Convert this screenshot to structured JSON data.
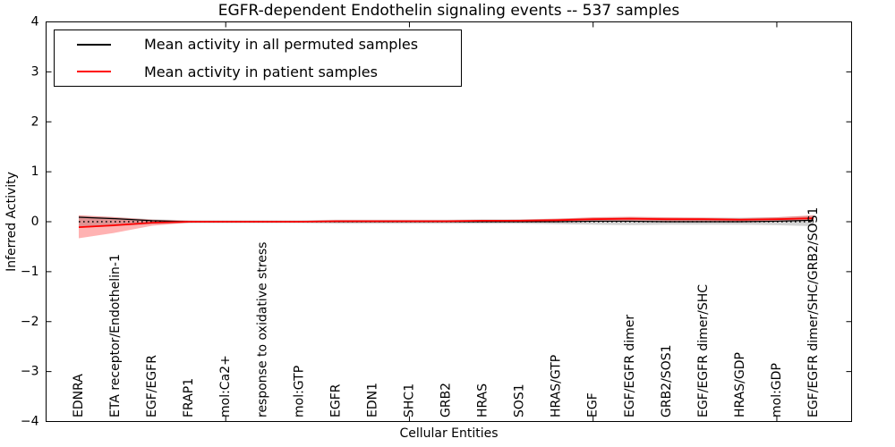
{
  "figure": {
    "title": "EGFR-dependent Endothelin signaling events -- 537 samples",
    "xlabel": "Cellular Entities",
    "ylabel": "Inferred Activity"
  },
  "legend": {
    "position": "upper left",
    "entries": [
      {
        "label": "Mean activity in all permuted samples",
        "color": "#000000"
      },
      {
        "label": "Mean activity in patient samples",
        "color": "#ff0000"
      }
    ]
  },
  "chart_data": {
    "type": "line",
    "title": "EGFR-dependent Endothelin signaling events -- 537 samples",
    "xlabel": "Cellular Entities",
    "ylabel": "Inferred Activity",
    "ylim": [
      -4,
      4
    ],
    "grid": false,
    "legend_position": "upper left",
    "yticks": [
      {
        "value": 4,
        "label": "4"
      },
      {
        "value": 3,
        "label": "3"
      },
      {
        "value": 2,
        "label": "2"
      },
      {
        "value": 1,
        "label": "1"
      },
      {
        "value": 0,
        "label": "0"
      },
      {
        "value": -1,
        "label": "−1"
      },
      {
        "value": -2,
        "label": "−2"
      },
      {
        "value": -3,
        "label": "−3"
      },
      {
        "value": -4,
        "label": "−4"
      }
    ],
    "xtick_marks_at": [
      4,
      9,
      14,
      19
    ],
    "categories": [
      "EDNRA",
      "ETA receptor/Endothelin-1",
      "EGF/EGFR",
      "FRAP1",
      "mol:Ca2+",
      "response to oxidative stress",
      "mol:GTP",
      "EGFR",
      "EDN1",
      "SHC1",
      "GRB2",
      "HRAS",
      "SOS1",
      "HRAS/GTP",
      "EGF",
      "EGF/EGFR dimer",
      "GRB2/SOS1",
      "EGF/EGFR dimer/SHC",
      "HRAS/GDP",
      "mol:GDP",
      "EGF/EGFR dimer/SHC/GRB2/SOS1"
    ],
    "reference_line": {
      "name": "zero-reference",
      "value": 0,
      "color": "#000000",
      "style": "dotted"
    },
    "series": [
      {
        "name": "Mean activity in all permuted samples",
        "color": "#000000",
        "style": "solid",
        "values": [
          0.09,
          0.06,
          0.02,
          0.0,
          0.0,
          0.0,
          0.0,
          0.0,
          0.0,
          0.0,
          0.0,
          0.0,
          0.0,
          0.0,
          0.01,
          0.01,
          0.0,
          0.0,
          0.0,
          0.01,
          0.03
        ]
      },
      {
        "name": "Mean activity in patient samples",
        "color": "#ff0000",
        "style": "solid",
        "values": [
          -0.11,
          -0.07,
          -0.02,
          0.0,
          0.0,
          0.0,
          0.0,
          0.01,
          0.01,
          0.01,
          0.01,
          0.02,
          0.02,
          0.03,
          0.05,
          0.06,
          0.05,
          0.05,
          0.04,
          0.05,
          0.07
        ]
      }
    ],
    "bands": [
      {
        "name": "permuted-confidence-band",
        "color": "#808080",
        "alpha": 0.35,
        "hi": [
          0.12,
          0.09,
          0.05,
          0.03,
          0.03,
          0.03,
          0.03,
          0.04,
          0.04,
          0.04,
          0.04,
          0.05,
          0.05,
          0.06,
          0.08,
          0.09,
          0.08,
          0.08,
          0.08,
          0.09,
          0.12
        ],
        "lo": [
          -0.12,
          -0.09,
          -0.05,
          -0.03,
          -0.03,
          -0.03,
          -0.03,
          -0.04,
          -0.04,
          -0.04,
          -0.04,
          -0.04,
          -0.04,
          -0.05,
          -0.06,
          -0.07,
          -0.06,
          -0.06,
          -0.06,
          -0.07,
          -0.09
        ]
      },
      {
        "name": "patient-confidence-band",
        "color": "#ff0000",
        "alpha": 0.3,
        "hi": [
          0.13,
          0.09,
          0.04,
          0.02,
          0.01,
          0.01,
          0.01,
          0.02,
          0.02,
          0.02,
          0.02,
          0.03,
          0.04,
          0.06,
          0.09,
          0.1,
          0.09,
          0.08,
          0.07,
          0.09,
          0.13
        ],
        "lo": [
          -0.33,
          -0.22,
          -0.08,
          -0.02,
          -0.01,
          -0.01,
          -0.01,
          -0.01,
          -0.01,
          -0.01,
          -0.01,
          0.0,
          0.0,
          0.0,
          0.01,
          0.02,
          0.01,
          0.01,
          0.0,
          0.01,
          0.02
        ]
      }
    ]
  }
}
